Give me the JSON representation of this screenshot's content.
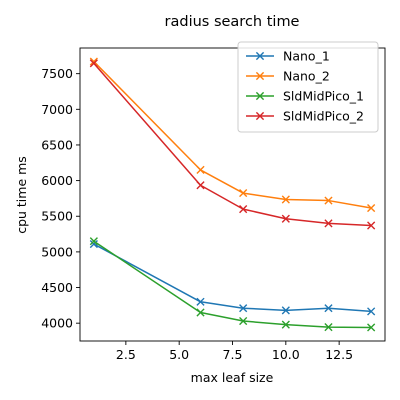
{
  "chart_data": {
    "type": "line",
    "title": "radius search time",
    "xlabel": "max leaf size",
    "ylabel": "cpu time ms",
    "xlim": [
      0.35,
      14.65
    ],
    "ylim": [
      3750,
      7860
    ],
    "xticks": [
      2.5,
      5.0,
      7.5,
      10.0,
      12.5
    ],
    "xtick_labels": [
      "2.5",
      "5.0",
      "7.5",
      "10.0",
      "12.5"
    ],
    "yticks": [
      4000,
      4500,
      5000,
      5500,
      6000,
      6500,
      7000,
      7500
    ],
    "ytick_labels": [
      "4000",
      "4500",
      "5000",
      "5500",
      "6000",
      "6500",
      "7000",
      "7500"
    ],
    "grid": false,
    "legend_position": "top-right",
    "marker": "x",
    "x": [
      1,
      6,
      8,
      10,
      12,
      14
    ],
    "series": [
      {
        "name": "Nano_1",
        "color": "#1f77b4",
        "values": [
          5110,
          4300,
          4210,
          4180,
          4210,
          4165
        ]
      },
      {
        "name": "Nano_2",
        "color": "#ff7f0e",
        "values": [
          7670,
          6150,
          5825,
          5735,
          5720,
          5615
        ]
      },
      {
        "name": "SldMidPico_1",
        "color": "#2ca02c",
        "values": [
          5150,
          4150,
          4030,
          3980,
          3945,
          3940
        ]
      },
      {
        "name": "SldMidPico_2",
        "color": "#d62728",
        "values": [
          7645,
          5935,
          5600,
          5465,
          5400,
          5370
        ]
      }
    ]
  }
}
